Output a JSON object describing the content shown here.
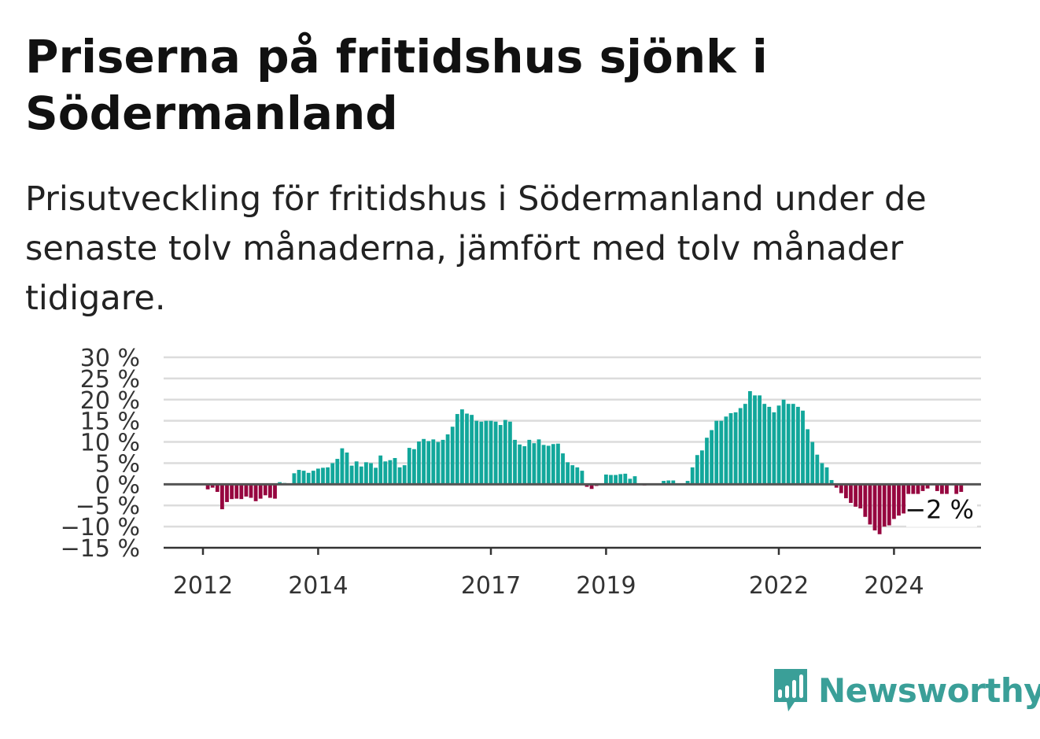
{
  "title": "Priserna på fritidshus sjönk i Södermanland",
  "subtitle": "Prisutveckling för fritidshus i Södermanland under de senaste tolv månaderna, jämfört med tolv månader tidigare.",
  "brand": "Newsworthy",
  "colors": {
    "positive": "#12a79b",
    "negative": "#96063f",
    "brand": "#3a9f98"
  },
  "chart_data": {
    "type": "bar",
    "ylim": [
      -15,
      30
    ],
    "y_ticks": [
      30,
      25,
      20,
      15,
      10,
      5,
      0,
      -5,
      -10,
      -15
    ],
    "y_tick_labels": [
      "30 %",
      "25 %",
      "20 %",
      "15 %",
      "10 %",
      "5 %",
      "0 %",
      "−5 %",
      "−10 %",
      "−15 %"
    ],
    "x_tick_labels": [
      "2012",
      "2014",
      "2017",
      "2019",
      "2022",
      "2024"
    ],
    "x_tick_positions": [
      0,
      24,
      60,
      84,
      120,
      144
    ],
    "start_month": "2012-01",
    "last_value_label": "−2 %",
    "values": [
      0,
      -1.2,
      -0.8,
      -1.8,
      -5.9,
      -4.2,
      -3.5,
      -3.4,
      -3.5,
      -2.9,
      -3.2,
      -4,
      -3.4,
      -2.6,
      -3.2,
      -3.4,
      0.5,
      0.3,
      0.2,
      2.6,
      3.4,
      3.2,
      2.7,
      3.2,
      3.7,
      3.9,
      4,
      5,
      6,
      8.5,
      7.5,
      4.4,
      5.4,
      4.2,
      5.2,
      5,
      3.9,
      6.8,
      5.4,
      5.7,
      6.2,
      4,
      4.5,
      8.6,
      8.3,
      10.1,
      10.7,
      10.2,
      10.6,
      10,
      10.5,
      11.8,
      13.6,
      16.6,
      17.7,
      16.7,
      16.4,
      15,
      14.8,
      15,
      15,
      14.8,
      14,
      15.2,
      14.8,
      10.5,
      9.4,
      9,
      10.5,
      9.7,
      10.6,
      9.3,
      9.1,
      9.5,
      9.6,
      7.3,
      5.2,
      4.5,
      4,
      3.2,
      -0.6,
      -1.1,
      -0.4,
      0,
      2.3,
      2.2,
      2.2,
      2.4,
      2.5,
      1.3,
      1.9,
      0,
      -0.3,
      0,
      0,
      0,
      0.8,
      0.9,
      0.9,
      0,
      0,
      0.8,
      4,
      6.9,
      8,
      11,
      12.8,
      15,
      15,
      16,
      16.8,
      17,
      18,
      19,
      22,
      21,
      21,
      19,
      18.3,
      17,
      18.6,
      20,
      19,
      19,
      18.3,
      17.4,
      13,
      10,
      7,
      5,
      4,
      1,
      -0.8,
      -2.1,
      -3.3,
      -4.4,
      -5.3,
      -5.7,
      -7.7,
      -9.5,
      -10.9,
      -11.8,
      -10,
      -9.7,
      -8.2,
      -7.4,
      -6.9,
      -6.3,
      -5.9,
      -5.8,
      -1.6,
      -1,
      0,
      -1.6,
      -2.5,
      -3.8,
      0,
      -2.9,
      -1.8
    ]
  }
}
